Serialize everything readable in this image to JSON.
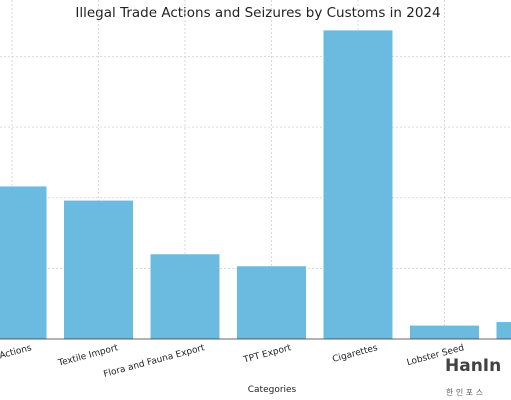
{
  "chart_data": {
    "type": "bar",
    "title": "Illegal Trade Actions and Seizures by Customs in 2024",
    "xlabel": "Categories",
    "ylabel": "",
    "categories": [
      "Illegal Actions",
      "Textile Import",
      "Flora and Fauna Export",
      "TPT Export",
      "Cigarettes",
      "Lobster Seed",
      ""
    ],
    "category_labels_shown": [
      "al Actions",
      "Textile Import",
      "Flora and Fauna Export",
      "TPT Export",
      "Cigarettes",
      "Lobster Seed",
      ""
    ],
    "values": [
      216,
      196,
      120,
      103,
      437,
      19,
      24
    ],
    "ylim": [
      0,
      480
    ],
    "grid": true,
    "bar_color": "#6bbbe0"
  },
  "watermark": {
    "main": "HanIn",
    "sub": "한 인 포 스"
  }
}
